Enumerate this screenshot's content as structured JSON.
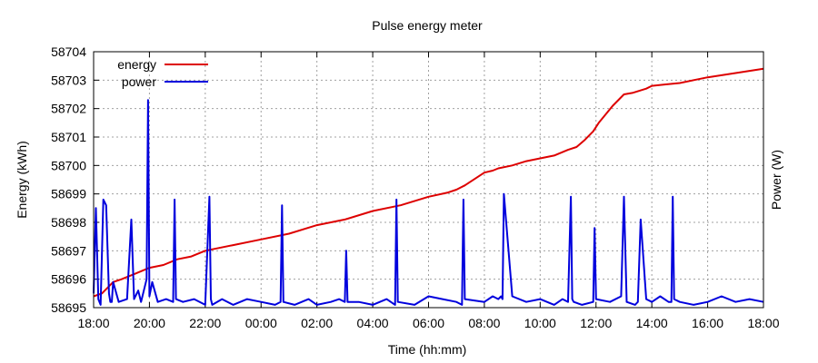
{
  "chart_data": {
    "type": "line",
    "title": "Pulse energy meter",
    "xlabel": "Time (hh:mm)",
    "ylabel": "Energy (kWh)",
    "y2label": "Power (W)",
    "x_ticks": [
      "18:00",
      "20:00",
      "22:00",
      "00:00",
      "02:00",
      "04:00",
      "06:00",
      "08:00",
      "10:00",
      "12:00",
      "14:00",
      "16:00",
      "18:00"
    ],
    "x_range_hours": [
      0,
      24
    ],
    "y_ticks": [
      "58695",
      "58696",
      "58697",
      "58698",
      "58699",
      "58700",
      "58701",
      "58702",
      "58703",
      "58704"
    ],
    "ylim": [
      58695,
      58704
    ],
    "grid": true,
    "legend_position": "top-left",
    "series": [
      {
        "name": "energy",
        "color": "#dd0000",
        "axis": "left",
        "x": [
          0,
          0.3,
          0.7,
          1.0,
          1.5,
          2.0,
          2.5,
          3.0,
          3.5,
          4.0,
          5.0,
          6.0,
          7.0,
          8.0,
          9.0,
          10.0,
          11.0,
          12.0,
          12.7,
          13.0,
          13.3,
          14.0,
          14.3,
          14.5,
          15.0,
          15.5,
          16.0,
          16.5,
          17.0,
          17.3,
          17.6,
          17.9,
          18.1,
          18.6,
          19.0,
          19.3,
          19.8,
          20.0,
          20.5,
          21.0,
          21.5,
          22.0,
          23.0,
          24.0
        ],
        "y": [
          58695.4,
          58695.5,
          58695.9,
          58696.0,
          58696.2,
          58696.4,
          58696.5,
          58696.7,
          58696.8,
          58697.0,
          58697.2,
          58697.4,
          58697.6,
          58697.9,
          58698.1,
          58698.4,
          58698.6,
          58698.9,
          58699.05,
          58699.15,
          58699.3,
          58699.75,
          58699.82,
          58699.9,
          58700.0,
          58700.15,
          58700.25,
          58700.35,
          58700.55,
          58700.65,
          58700.9,
          58701.2,
          58701.5,
          58702.1,
          58702.5,
          58702.55,
          58702.7,
          58702.8,
          58702.85,
          58702.9,
          58703.0,
          58703.1,
          58703.25,
          58703.4
        ]
      },
      {
        "name": "power",
        "color": "#0000dd",
        "axis": "right",
        "x": [
          0,
          0.08,
          0.17,
          0.25,
          0.35,
          0.45,
          0.55,
          0.6,
          0.65,
          0.7,
          0.9,
          1.2,
          1.35,
          1.45,
          1.6,
          1.7,
          1.9,
          1.95,
          2.0,
          2.1,
          2.3,
          2.6,
          2.85,
          2.9,
          2.95,
          3.2,
          3.6,
          4.0,
          4.15,
          4.2,
          4.25,
          4.6,
          5.0,
          5.5,
          6.0,
          6.5,
          6.7,
          6.75,
          6.8,
          7.2,
          7.7,
          8.0,
          8.5,
          8.8,
          9.0,
          9.05,
          9.1,
          9.5,
          10.0,
          10.5,
          10.8,
          10.85,
          10.9,
          11.5,
          12.0,
          12.5,
          13.0,
          13.2,
          13.25,
          13.3,
          14.0,
          14.3,
          14.5,
          14.6,
          14.65,
          14.7,
          15.0,
          15.5,
          16.0,
          16.5,
          16.8,
          17.0,
          17.1,
          17.15,
          17.2,
          17.5,
          17.9,
          17.95,
          18.0,
          18.5,
          18.9,
          19.0,
          19.1,
          19.4,
          19.5,
          19.6,
          19.8,
          20.0,
          20.3,
          20.6,
          20.7,
          20.75,
          20.8,
          21.0,
          21.5,
          22.0,
          22.5,
          23.0,
          23.5,
          24.0
        ],
        "y": [
          58695.5,
          58698.5,
          58695.3,
          58695.1,
          58698.8,
          58698.6,
          58695.5,
          58695.2,
          58695.2,
          58695.9,
          58695.2,
          58695.3,
          58698.1,
          58695.3,
          58695.6,
          58695.2,
          58696.0,
          58702.3,
          58695.4,
          58695.9,
          58695.2,
          58695.3,
          58695.2,
          58698.8,
          58695.3,
          58695.2,
          58695.3,
          58695.1,
          58698.9,
          58695.3,
          58695.1,
          58695.3,
          58695.1,
          58695.3,
          58695.2,
          58695.1,
          58695.2,
          58698.6,
          58695.2,
          58695.1,
          58695.3,
          58695.1,
          58695.2,
          58695.3,
          58695.2,
          58697.0,
          58695.2,
          58695.2,
          58695.1,
          58695.3,
          58695.1,
          58698.8,
          58695.2,
          58695.1,
          58695.4,
          58695.3,
          58695.2,
          58695.1,
          58698.8,
          58695.3,
          58695.2,
          58695.4,
          58695.3,
          58695.4,
          58695.3,
          58699.0,
          58695.4,
          58695.2,
          58695.3,
          58695.1,
          58695.3,
          58695.2,
          58698.9,
          58695.3,
          58695.2,
          58695.1,
          58695.2,
          58697.8,
          58695.3,
          58695.2,
          58695.4,
          58698.9,
          58695.2,
          58695.1,
          58695.2,
          58698.1,
          58695.3,
          58695.2,
          58695.4,
          58695.2,
          58695.2,
          58698.9,
          58695.3,
          58695.2,
          58695.1,
          58695.2,
          58695.4,
          58695.2,
          58695.3,
          58695.2
        ]
      }
    ]
  }
}
